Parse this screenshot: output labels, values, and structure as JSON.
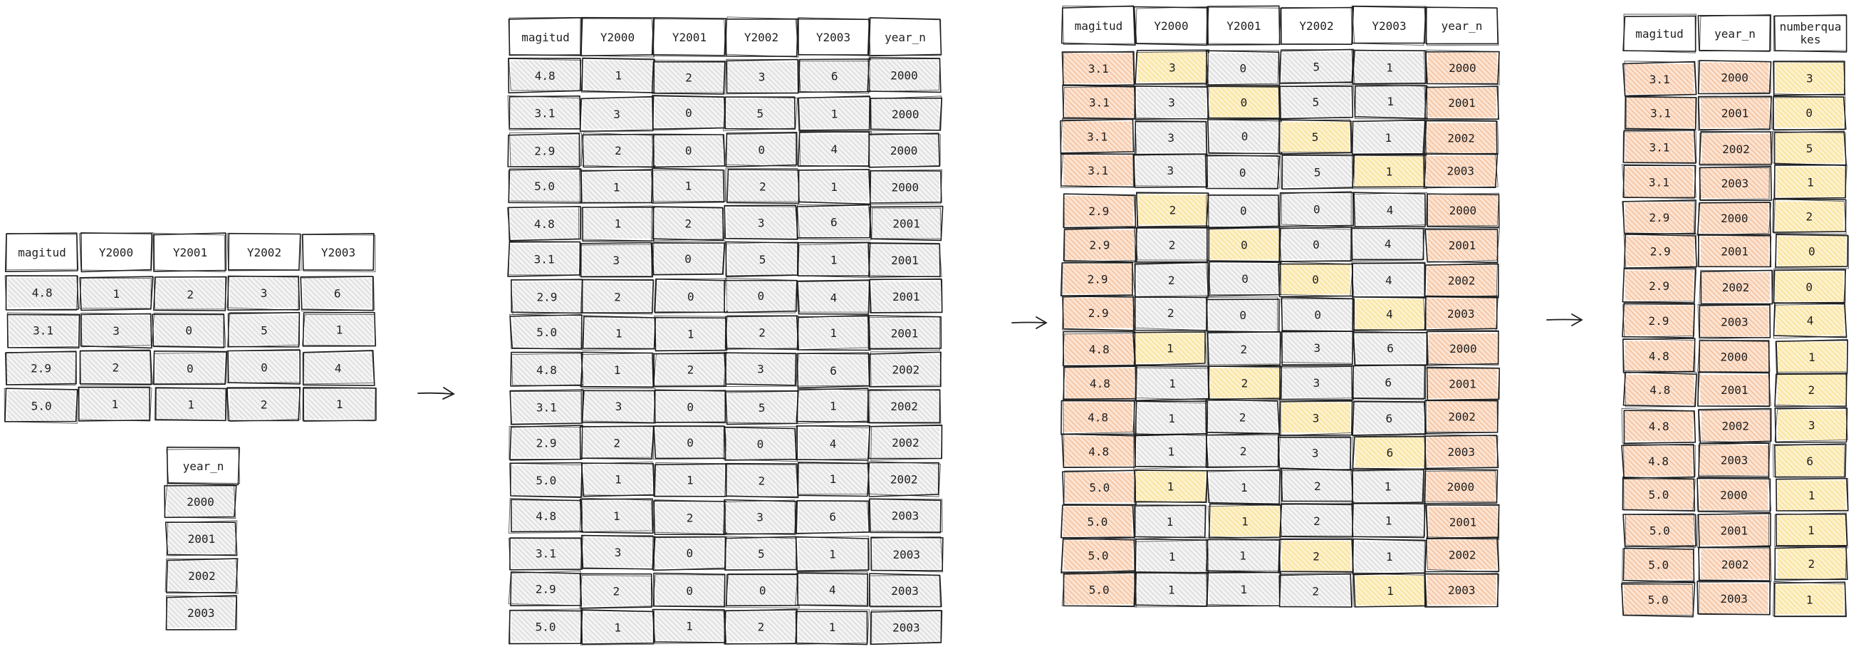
{
  "colors": {
    "stroke": "#1e1e1e",
    "plain_fill": "#dcdcdc",
    "orange_fill": "#f2a36b",
    "yellow_fill": "#f7d56b"
  },
  "input_table": {
    "headers": [
      "magitud",
      "Y2000",
      "Y2001",
      "Y2002",
      "Y2003"
    ],
    "rows": [
      [
        "4.8",
        "1",
        "2",
        "3",
        "6"
      ],
      [
        "3.1",
        "3",
        "0",
        "5",
        "1"
      ],
      [
        "2.9",
        "2",
        "0",
        "0",
        "4"
      ],
      [
        "5.0",
        "1",
        "1",
        "2",
        "1"
      ]
    ]
  },
  "year_table": {
    "header": "year_n",
    "values": [
      "2000",
      "2001",
      "2002",
      "2003"
    ]
  },
  "cross_table": {
    "headers": [
      "magitud",
      "Y2000",
      "Y2001",
      "Y2002",
      "Y2003",
      "year_n"
    ],
    "rows": [
      [
        "4.8",
        "1",
        "2",
        "3",
        "6",
        "2000"
      ],
      [
        "3.1",
        "3",
        "0",
        "5",
        "1",
        "2000"
      ],
      [
        "2.9",
        "2",
        "0",
        "0",
        "4",
        "2000"
      ],
      [
        "5.0",
        "1",
        "1",
        "2",
        "1",
        "2000"
      ],
      [
        "4.8",
        "1",
        "2",
        "3",
        "6",
        "2001"
      ],
      [
        "3.1",
        "3",
        "0",
        "5",
        "1",
        "2001"
      ],
      [
        "2.9",
        "2",
        "0",
        "0",
        "4",
        "2001"
      ],
      [
        "5.0",
        "1",
        "1",
        "2",
        "1",
        "2001"
      ],
      [
        "4.8",
        "1",
        "2",
        "3",
        "6",
        "2002"
      ],
      [
        "3.1",
        "3",
        "0",
        "5",
        "1",
        "2002"
      ],
      [
        "2.9",
        "2",
        "0",
        "0",
        "4",
        "2002"
      ],
      [
        "5.0",
        "1",
        "1",
        "2",
        "1",
        "2002"
      ],
      [
        "4.8",
        "1",
        "2",
        "3",
        "6",
        "2003"
      ],
      [
        "3.1",
        "3",
        "0",
        "5",
        "1",
        "2003"
      ],
      [
        "2.9",
        "2",
        "0",
        "0",
        "4",
        "2003"
      ],
      [
        "5.0",
        "1",
        "1",
        "2",
        "1",
        "2003"
      ]
    ]
  },
  "highlight_table": {
    "headers": [
      "magitud",
      "Y2000",
      "Y2001",
      "Y2002",
      "Y2003",
      "year_n"
    ],
    "rows": [
      [
        "3.1",
        "3",
        "0",
        "5",
        "1",
        "2000"
      ],
      [
        "3.1",
        "3",
        "0",
        "5",
        "1",
        "2001"
      ],
      [
        "3.1",
        "3",
        "0",
        "5",
        "1",
        "2002"
      ],
      [
        "3.1",
        "3",
        "0",
        "5",
        "1",
        "2003"
      ],
      [
        "2.9",
        "2",
        "0",
        "0",
        "4",
        "2000"
      ],
      [
        "2.9",
        "2",
        "0",
        "0",
        "4",
        "2001"
      ],
      [
        "2.9",
        "2",
        "0",
        "0",
        "4",
        "2002"
      ],
      [
        "2.9",
        "2",
        "0",
        "0",
        "4",
        "2003"
      ],
      [
        "4.8",
        "1",
        "2",
        "3",
        "6",
        "2000"
      ],
      [
        "4.8",
        "1",
        "2",
        "3",
        "6",
        "2001"
      ],
      [
        "4.8",
        "1",
        "2",
        "3",
        "6",
        "2002"
      ],
      [
        "4.8",
        "1",
        "2",
        "3",
        "6",
        "2003"
      ],
      [
        "5.0",
        "1",
        "1",
        "2",
        "1",
        "2000"
      ],
      [
        "5.0",
        "1",
        "1",
        "2",
        "1",
        "2001"
      ],
      [
        "5.0",
        "1",
        "1",
        "2",
        "1",
        "2002"
      ],
      [
        "5.0",
        "1",
        "1",
        "2",
        "1",
        "2003"
      ]
    ]
  },
  "result_table": {
    "headers": [
      "magitud",
      "year_n",
      "numberquakes"
    ],
    "rows": [
      [
        "3.1",
        "2000",
        "3"
      ],
      [
        "3.1",
        "2001",
        "0"
      ],
      [
        "3.1",
        "2002",
        "5"
      ],
      [
        "3.1",
        "2003",
        "1"
      ],
      [
        "2.9",
        "2000",
        "2"
      ],
      [
        "2.9",
        "2001",
        "0"
      ],
      [
        "2.9",
        "2002",
        "0"
      ],
      [
        "2.9",
        "2003",
        "4"
      ],
      [
        "4.8",
        "2000",
        "1"
      ],
      [
        "4.8",
        "2001",
        "2"
      ],
      [
        "4.8",
        "2002",
        "3"
      ],
      [
        "4.8",
        "2003",
        "6"
      ],
      [
        "5.0",
        "2000",
        "1"
      ],
      [
        "5.0",
        "2001",
        "1"
      ],
      [
        "5.0",
        "2002",
        "2"
      ],
      [
        "5.0",
        "2003",
        "1"
      ]
    ]
  }
}
